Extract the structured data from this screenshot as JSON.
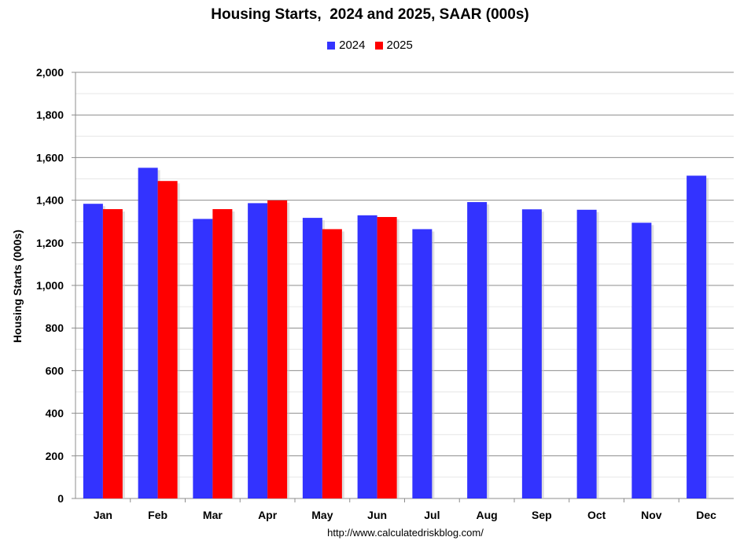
{
  "chart_data": {
    "type": "bar",
    "title": "Housing Starts,  2024 and 2025, SAAR (000s)",
    "xlabel": "",
    "ylabel": "Housing Starts (000s)",
    "categories": [
      "Jan",
      "Feb",
      "Mar",
      "Apr",
      "May",
      "Jun",
      "Jul",
      "Aug",
      "Sep",
      "Oct",
      "Nov",
      "Dec"
    ],
    "series": [
      {
        "name": "2024",
        "color": "#3333ff",
        "values": [
          1383,
          1552,
          1312,
          1386,
          1317,
          1329,
          1264,
          1391,
          1357,
          1355,
          1294,
          1515
        ]
      },
      {
        "name": "2025",
        "color": "#ff0000",
        "values": [
          1358,
          1490,
          1358,
          1399,
          1264,
          1321,
          null,
          null,
          null,
          null,
          null,
          null
        ]
      }
    ],
    "ylim": [
      0,
      2000
    ],
    "yticks": [
      "0",
      "200",
      "400",
      "600",
      "800",
      "1,000",
      "1,200",
      "1,400",
      "1,600",
      "1,800",
      "2,000"
    ],
    "grid": true,
    "legend_position": "top-center",
    "source": "http://www.calculatedriskblog.com/"
  }
}
